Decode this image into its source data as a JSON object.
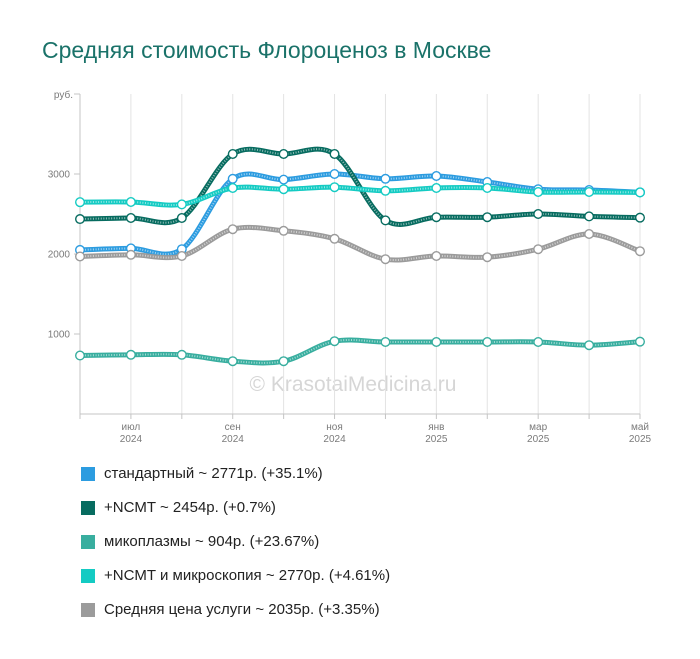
{
  "watermark": "© KrasotaiMedicina.ru",
  "chart_data": {
    "type": "line",
    "title": "Средняя стоимость Флороценоз в Москве",
    "ylabel": "руб.",
    "ylim": [
      0,
      4000
    ],
    "yticks": [
      1000,
      2000,
      3000
    ],
    "grid": {
      "x": true,
      "y": false
    },
    "smooth": true,
    "legend_position": "bottom",
    "categories": [
      {
        "month": "",
        "year": ""
      },
      {
        "month": "июл",
        "year": "2024"
      },
      {
        "month": "",
        "year": ""
      },
      {
        "month": "сен",
        "year": "2024"
      },
      {
        "month": "",
        "year": ""
      },
      {
        "month": "ноя",
        "year": "2024"
      },
      {
        "month": "",
        "year": ""
      },
      {
        "month": "янв",
        "year": "2025"
      },
      {
        "month": "",
        "year": ""
      },
      {
        "month": "мар",
        "year": "2025"
      },
      {
        "month": "",
        "year": ""
      },
      {
        "month": "май",
        "year": "2025"
      }
    ],
    "series": [
      {
        "name": "стандартный",
        "summary": "~ 2771р. (+35.1%)",
        "color": "#2c9ce0",
        "values": [
          2051,
          2070,
          2060,
          2940,
          2930,
          3000,
          2940,
          2975,
          2900,
          2810,
          2800,
          2771
        ]
      },
      {
        "name": "+NCMT",
        "summary": "~ 2454р. (+0.7%)",
        "color": "#076c60",
        "values": [
          2437,
          2450,
          2450,
          3250,
          3250,
          3250,
          2420,
          2460,
          2460,
          2500,
          2470,
          2454
        ]
      },
      {
        "name": "микоплазмы",
        "summary": "~ 904р. (+23.67%)",
        "color": "#38ae9f",
        "values": [
          731,
          740,
          740,
          660,
          660,
          910,
          900,
          900,
          900,
          900,
          860,
          904
        ]
      },
      {
        "name": "+NCMT и микроскопия",
        "summary": "~ 2770р. (+4.61%)",
        "color": "#14cbc3",
        "values": [
          2648,
          2650,
          2620,
          2825,
          2810,
          2835,
          2790,
          2825,
          2825,
          2775,
          2775,
          2770
        ]
      },
      {
        "name": "Средняя цена услуги",
        "summary": "~ 2035р. (+3.35%)",
        "color": "#9b9b9b",
        "values": [
          1969,
          1990,
          1975,
          2310,
          2290,
          2190,
          1935,
          1975,
          1960,
          2060,
          2250,
          2035
        ]
      }
    ]
  }
}
